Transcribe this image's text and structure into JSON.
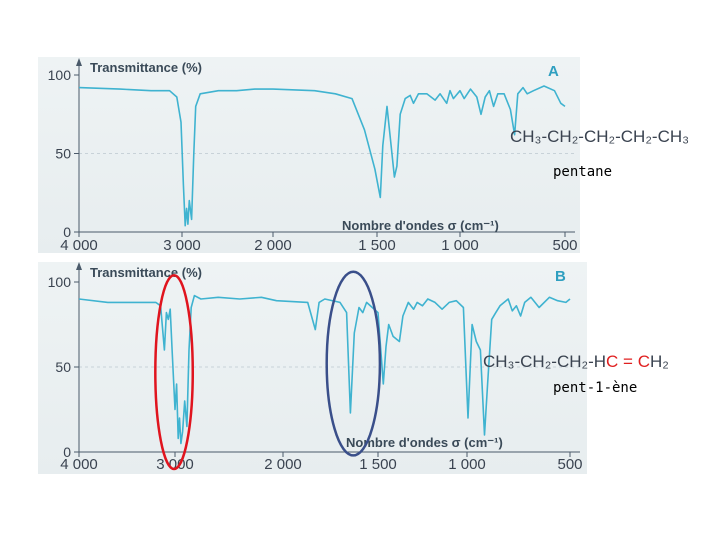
{
  "chart_data": [
    {
      "type": "line",
      "panel_letter": "A",
      "ylabel": "Transmittance (%)",
      "xlabel": "Nombre d'ondes σ (cm⁻¹)",
      "x_reversed": true,
      "xlim": [
        4000,
        500
      ],
      "ylim": [
        0,
        100
      ],
      "xticks": [
        {
          "value": 4000,
          "label": "4 000"
        },
        {
          "value": 3000,
          "label": "3 000"
        },
        {
          "value": 2000,
          "label": "2 000"
        },
        {
          "value": 1500,
          "label": "1 500"
        },
        {
          "value": 1000,
          "label": "1 000"
        },
        {
          "value": 500,
          "label": "500"
        }
      ],
      "yticks": [
        {
          "value": 100,
          "label": "100"
        },
        {
          "value": 50,
          "label": "50"
        },
        {
          "value": 0,
          "label": "0"
        }
      ],
      "formula": "CH₃-CH₂-CH₂-CH₂-CH₃",
      "compound_name": "pentane",
      "series": [
        {
          "color": "#3fb3d0",
          "points": [
            [
              4000,
              92
            ],
            [
              3600,
              91
            ],
            [
              3300,
              90
            ],
            [
              3120,
              90
            ],
            [
              3050,
              86
            ],
            [
              3010,
              70
            ],
            [
              2985,
              30
            ],
            [
              2965,
              4
            ],
            [
              2950,
              15
            ],
            [
              2935,
              5
            ],
            [
              2920,
              20
            ],
            [
              2895,
              8
            ],
            [
              2870,
              50
            ],
            [
              2850,
              80
            ],
            [
              2800,
              88
            ],
            [
              2600,
              90
            ],
            [
              2400,
              90
            ],
            [
              2200,
              91
            ],
            [
              2000,
              91
            ],
            [
              1800,
              90
            ],
            [
              1700,
              88
            ],
            [
              1620,
              85
            ],
            [
              1560,
              65
            ],
            [
              1510,
              40
            ],
            [
              1480,
              22
            ],
            [
              1465,
              55
            ],
            [
              1440,
              80
            ],
            [
              1420,
              60
            ],
            [
              1395,
              35
            ],
            [
              1380,
              42
            ],
            [
              1360,
              75
            ],
            [
              1330,
              85
            ],
            [
              1300,
              87
            ],
            [
              1280,
              82
            ],
            [
              1250,
              88
            ],
            [
              1200,
              88
            ],
            [
              1150,
              84
            ],
            [
              1120,
              88
            ],
            [
              1080,
              82
            ],
            [
              1060,
              90
            ],
            [
              1040,
              85
            ],
            [
              1000,
              90
            ],
            [
              980,
              85
            ],
            [
              950,
              91
            ],
            [
              920,
              86
            ],
            [
              900,
              75
            ],
            [
              880,
              86
            ],
            [
              860,
              90
            ],
            [
              840,
              80
            ],
            [
              820,
              88
            ],
            [
              790,
              88
            ],
            [
              760,
              78
            ],
            [
              740,
              62
            ],
            [
              725,
              88
            ],
            [
              700,
              92
            ],
            [
              680,
              88
            ],
            [
              650,
              90
            ],
            [
              600,
              93
            ],
            [
              550,
              90
            ],
            [
              520,
              82
            ],
            [
              500,
              80
            ]
          ]
        }
      ]
    },
    {
      "type": "line",
      "panel_letter": "B",
      "ylabel": "Transmittance (%)",
      "xlabel": "Nombre d'ondes σ (cm⁻¹)",
      "x_reversed": true,
      "xlim": [
        4000,
        500
      ],
      "ylim": [
        0,
        100
      ],
      "xticks": [
        {
          "value": 4000,
          "label": "4 000"
        },
        {
          "value": 3000,
          "label": "3 000"
        },
        {
          "value": 2000,
          "label": "2 000"
        },
        {
          "value": 1500,
          "label": "1 500"
        },
        {
          "value": 1000,
          "label": "1 000"
        },
        {
          "value": 500,
          "label": "500"
        }
      ],
      "yticks": [
        {
          "value": 100,
          "label": "100"
        },
        {
          "value": 50,
          "label": "50"
        },
        {
          "value": 0,
          "label": "0"
        }
      ],
      "formula_black": "CH₃-CH₂-CH₂-H",
      "formula_red": "C = C",
      "formula_tail": "H₂",
      "compound_name": "pent-1-ène",
      "annotations": [
        {
          "shape": "ellipse",
          "color": "#e0141e",
          "center_x": 3010,
          "center_y": 47,
          "rx_units": 195,
          "ry_units": 57
        },
        {
          "shape": "ellipse",
          "color": "#3a4f8a",
          "center_x": 1630,
          "center_y": 52,
          "rx_units": 140,
          "ry_units": 54
        }
      ],
      "series": [
        {
          "color": "#3fb3d0",
          "points": [
            [
              4000,
              90
            ],
            [
              3700,
              88
            ],
            [
              3400,
              88
            ],
            [
              3200,
              88
            ],
            [
              3150,
              86
            ],
            [
              3110,
              60
            ],
            [
              3090,
              82
            ],
            [
              3070,
              78
            ],
            [
              3050,
              84
            ],
            [
              3030,
              60
            ],
            [
              3000,
              25
            ],
            [
              2985,
              40
            ],
            [
              2970,
              8
            ],
            [
              2958,
              20
            ],
            [
              2945,
              5
            ],
            [
              2930,
              12
            ],
            [
              2910,
              30
            ],
            [
              2890,
              15
            ],
            [
              2870,
              60
            ],
            [
              2850,
              85
            ],
            [
              2820,
              92
            ],
            [
              2760,
              90
            ],
            [
              2600,
              91
            ],
            [
              2400,
              90
            ],
            [
              2200,
              91
            ],
            [
              2060,
              89
            ],
            [
              1870,
              88
            ],
            [
              1830,
              72
            ],
            [
              1810,
              88
            ],
            [
              1780,
              90
            ],
            [
              1700,
              88
            ],
            [
              1665,
              82
            ],
            [
              1645,
              23
            ],
            [
              1625,
              70
            ],
            [
              1600,
              85
            ],
            [
              1580,
              82
            ],
            [
              1560,
              88
            ],
            [
              1500,
              82
            ],
            [
              1470,
              40
            ],
            [
              1455,
              62
            ],
            [
              1440,
              75
            ],
            [
              1415,
              68
            ],
            [
              1380,
              65
            ],
            [
              1360,
              80
            ],
            [
              1330,
              88
            ],
            [
              1300,
              84
            ],
            [
              1280,
              88
            ],
            [
              1250,
              86
            ],
            [
              1220,
              90
            ],
            [
              1180,
              88
            ],
            [
              1140,
              84
            ],
            [
              1100,
              88
            ],
            [
              1060,
              89
            ],
            [
              1020,
              85
            ],
            [
              995,
              20
            ],
            [
              975,
              75
            ],
            [
              955,
              65
            ],
            [
              935,
              60
            ],
            [
              915,
              10
            ],
            [
              900,
              40
            ],
            [
              880,
              78
            ],
            [
              860,
              82
            ],
            [
              840,
              86
            ],
            [
              800,
              90
            ],
            [
              780,
              83
            ],
            [
              760,
              86
            ],
            [
              740,
              80
            ],
            [
              720,
              88
            ],
            [
              690,
              91
            ],
            [
              650,
              85
            ],
            [
              600,
              91
            ],
            [
              560,
              89
            ],
            [
              520,
              88
            ],
            [
              500,
              90
            ]
          ]
        }
      ]
    }
  ]
}
